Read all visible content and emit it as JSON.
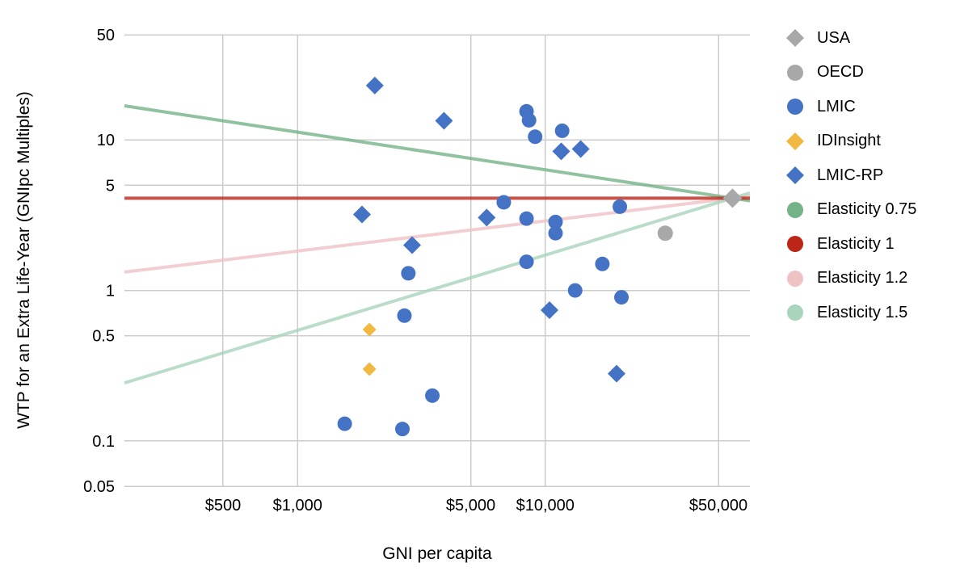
{
  "chart_data": {
    "type": "scatter",
    "title": "",
    "xlabel": "GNI per capita",
    "ylabel": "WTP for an Extra Life-Year (GNIpc Multiples)",
    "x_scale": "log",
    "y_scale": "log",
    "xlim": [
      200,
      67000
    ],
    "ylim": [
      0.05,
      50
    ],
    "grid": true,
    "legend_position": "right",
    "background_color": "#ffffff",
    "gridline_color": "#cccccc",
    "x_ticks": [
      {
        "value": 500,
        "label": "$500"
      },
      {
        "value": 1000,
        "label": "$1,000"
      },
      {
        "value": 5000,
        "label": "$5,000"
      },
      {
        "value": 10000,
        "label": "$10,000"
      },
      {
        "value": 50000,
        "label": "$50,000"
      }
    ],
    "y_ticks": [
      {
        "value": 50,
        "label": "50"
      },
      {
        "value": 10,
        "label": "10"
      },
      {
        "value": 5,
        "label": "5"
      },
      {
        "value": 1,
        "label": "1"
      },
      {
        "value": 0.5,
        "label": "0.5"
      },
      {
        "value": 0.1,
        "label": "0.1"
      },
      {
        "value": 0.05,
        "label": "0.05"
      }
    ],
    "series": [
      {
        "name": "LMIC",
        "marker": "circle",
        "color": "#4472c4",
        "size": 18,
        "points": [
          [
            8400,
            15.5
          ],
          [
            8600,
            13.5
          ],
          [
            9100,
            10.5
          ],
          [
            11700,
            11.5
          ],
          [
            6800,
            3.85
          ],
          [
            8400,
            3.0
          ],
          [
            11000,
            2.85
          ],
          [
            11000,
            2.4
          ],
          [
            8400,
            1.55
          ],
          [
            2800,
            1.3
          ],
          [
            20000,
            3.6
          ],
          [
            17000,
            1.5
          ],
          [
            13200,
            1.0
          ],
          [
            20300,
            0.9
          ],
          [
            2700,
            0.68
          ],
          [
            3500,
            0.2
          ],
          [
            1550,
            0.13
          ],
          [
            2650,
            0.12
          ]
        ]
      },
      {
        "name": "LMIC-RP",
        "marker": "diamond",
        "color": "#4472c4",
        "size": 22,
        "points": [
          [
            2050,
            23
          ],
          [
            3900,
            13.4
          ],
          [
            11600,
            8.4
          ],
          [
            13900,
            8.7
          ],
          [
            1820,
            3.2
          ],
          [
            2900,
            2.0
          ],
          [
            5800,
            3.05
          ],
          [
            10400,
            0.74
          ],
          [
            19400,
            0.28
          ]
        ]
      },
      {
        "name": "IDInsight",
        "marker": "diamond",
        "color": "#f2b942",
        "size": 17,
        "points": [
          [
            1950,
            0.55
          ],
          [
            1950,
            0.3
          ]
        ]
      },
      {
        "name": "OECD",
        "marker": "circle",
        "color": "#a8a8a8",
        "size": 19,
        "points": [
          [
            30500,
            2.4
          ]
        ]
      },
      {
        "name": "USA",
        "marker": "diamond",
        "color": "#a8a8a8",
        "size": 24,
        "points": [
          [
            57000,
            4.1
          ]
        ]
      }
    ],
    "reference_lines": [
      {
        "name": "Elasticity 0.75",
        "elasticity": 0.75,
        "color": "#74b388",
        "opacity": 0.8
      },
      {
        "name": "Elasticity 1.2",
        "elasticity": 1.2,
        "color": "#efc2c4",
        "opacity": 0.8
      },
      {
        "name": "Elasticity 1.5",
        "elasticity": 1.5,
        "color": "#a9d5bc",
        "opacity": 0.8
      },
      {
        "name": "Elasticity 1",
        "elasticity": 1.0,
        "color": "#bc2619",
        "opacity": 0.8
      }
    ],
    "reference_pivot": [
      57000,
      4.1
    ]
  },
  "legend": {
    "items": [
      {
        "label": "USA",
        "marker": "diamond",
        "color": "#a8a8a8"
      },
      {
        "label": "OECD",
        "marker": "circle",
        "color": "#a8a8a8"
      },
      {
        "label": "LMIC",
        "marker": "circle",
        "color": "#4472c4"
      },
      {
        "label": "IDInsight",
        "marker": "diamond",
        "color": "#f2b942"
      },
      {
        "label": "LMIC-RP",
        "marker": "diamond",
        "color": "#4472c4"
      },
      {
        "label": "Elasticity 0.75",
        "marker": "circle",
        "color": "#74b388"
      },
      {
        "label": "Elasticity 1",
        "marker": "circle",
        "color": "#bc2619"
      },
      {
        "label": "Elasticity 1.2",
        "marker": "circle",
        "color": "#efc2c4"
      },
      {
        "label": "Elasticity 1.5",
        "marker": "circle",
        "color": "#a9d5bc"
      }
    ]
  }
}
